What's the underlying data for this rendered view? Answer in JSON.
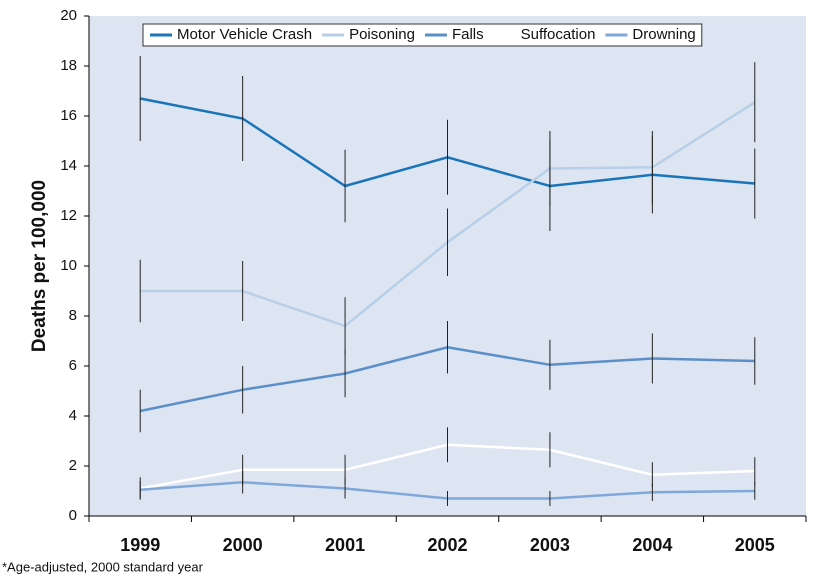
{
  "chart_data": {
    "type": "line",
    "ylabel": "Deaths per 100,000",
    "footnote": "*Age-adjusted, 2000 standard year",
    "categories": [
      "1999",
      "2000",
      "2001",
      "2002",
      "2003",
      "2004",
      "2005"
    ],
    "series": [
      {
        "name": "Motor Vehicle Crash",
        "color": "#1a75b8",
        "values": [
          16.7,
          15.9,
          13.2,
          14.35,
          13.2,
          13.65,
          13.3
        ],
        "errors": [
          1.7,
          1.7,
          1.45,
          1.5,
          1.8,
          1.55,
          1.4
        ]
      },
      {
        "name": "Poisoning",
        "color": "#b8cfe8",
        "values": [
          9.0,
          9.0,
          7.6,
          10.95,
          13.9,
          13.95,
          16.55
        ],
        "errors": [
          1.25,
          1.2,
          1.15,
          1.35,
          1.5,
          1.45,
          1.6
        ]
      },
      {
        "name": "Falls",
        "color": "#5b8fc8",
        "values": [
          4.2,
          5.05,
          5.7,
          6.75,
          6.05,
          6.3,
          6.2
        ],
        "errors": [
          0.85,
          0.95,
          0.95,
          1.05,
          1.0,
          1.0,
          0.95
        ]
      },
      {
        "name": "Suffocation",
        "color": "#ffffff",
        "values": [
          1.1,
          1.85,
          1.85,
          2.85,
          2.65,
          1.65,
          1.8
        ],
        "errors": [
          0.45,
          0.6,
          0.6,
          0.7,
          0.7,
          0.5,
          0.55
        ]
      },
      {
        "name": "Drowning",
        "color": "#7fa8d8",
        "values": [
          1.05,
          1.35,
          1.1,
          0.7,
          0.7,
          0.95,
          1.0
        ],
        "errors": [
          0.35,
          0.45,
          0.4,
          0.3,
          0.3,
          0.35,
          0.35
        ]
      }
    ],
    "ylim": [
      0,
      20
    ],
    "yticks": [
      0,
      2,
      4,
      6,
      8,
      10,
      12,
      14,
      16,
      18,
      20
    ],
    "legend": "top",
    "background": "#dde5f3"
  }
}
